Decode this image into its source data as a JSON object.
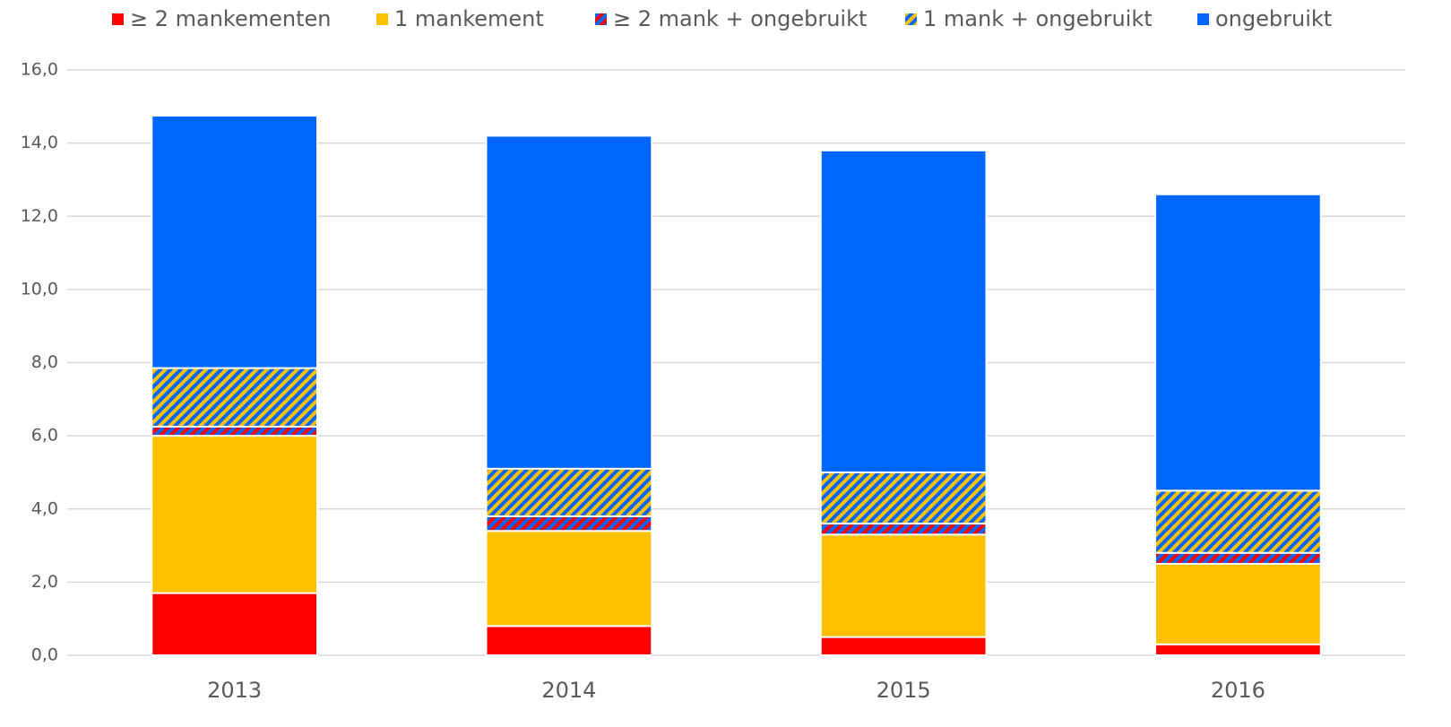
{
  "chart_data": {
    "type": "stacked_bar",
    "categories": [
      "2013",
      "2014",
      "2015",
      "2016"
    ],
    "series": [
      {
        "name": "≥ 2 mankementen",
        "color": "#ff0000",
        "values": [
          1.7,
          0.8,
          0.5,
          0.3
        ]
      },
      {
        "name": "1 mankement",
        "color": "#ffc000",
        "values": [
          4.3,
          2.6,
          2.8,
          2.2
        ]
      },
      {
        "name": "≥ 2 mank + ongebruikt",
        "color": "#ff0000",
        "stripe_color": "#0066ff",
        "values": [
          0.25,
          0.4,
          0.3,
          0.3
        ]
      },
      {
        "name": "1 mank + ongebruikt",
        "color": "#ffc000",
        "stripe_color": "#0066ff",
        "values": [
          1.6,
          1.3,
          1.4,
          1.7
        ]
      },
      {
        "name": "ongebruikt",
        "color": "#0066ff",
        "values": [
          6.9,
          9.1,
          8.8,
          8.1
        ]
      }
    ],
    "ylim": [
      0,
      16
    ],
    "yticks": [
      {
        "value": 0,
        "label": "0,0"
      },
      {
        "value": 2,
        "label": "2,0"
      },
      {
        "value": 4,
        "label": "4,0"
      },
      {
        "value": 6,
        "label": "6,0"
      },
      {
        "value": 8,
        "label": "8,0"
      },
      {
        "value": 10,
        "label": "10,0"
      },
      {
        "value": 12,
        "label": "12,0"
      },
      {
        "value": 14,
        "label": "14,0"
      },
      {
        "value": 16,
        "label": "16,0"
      }
    ],
    "grid": true,
    "legend": "top"
  }
}
